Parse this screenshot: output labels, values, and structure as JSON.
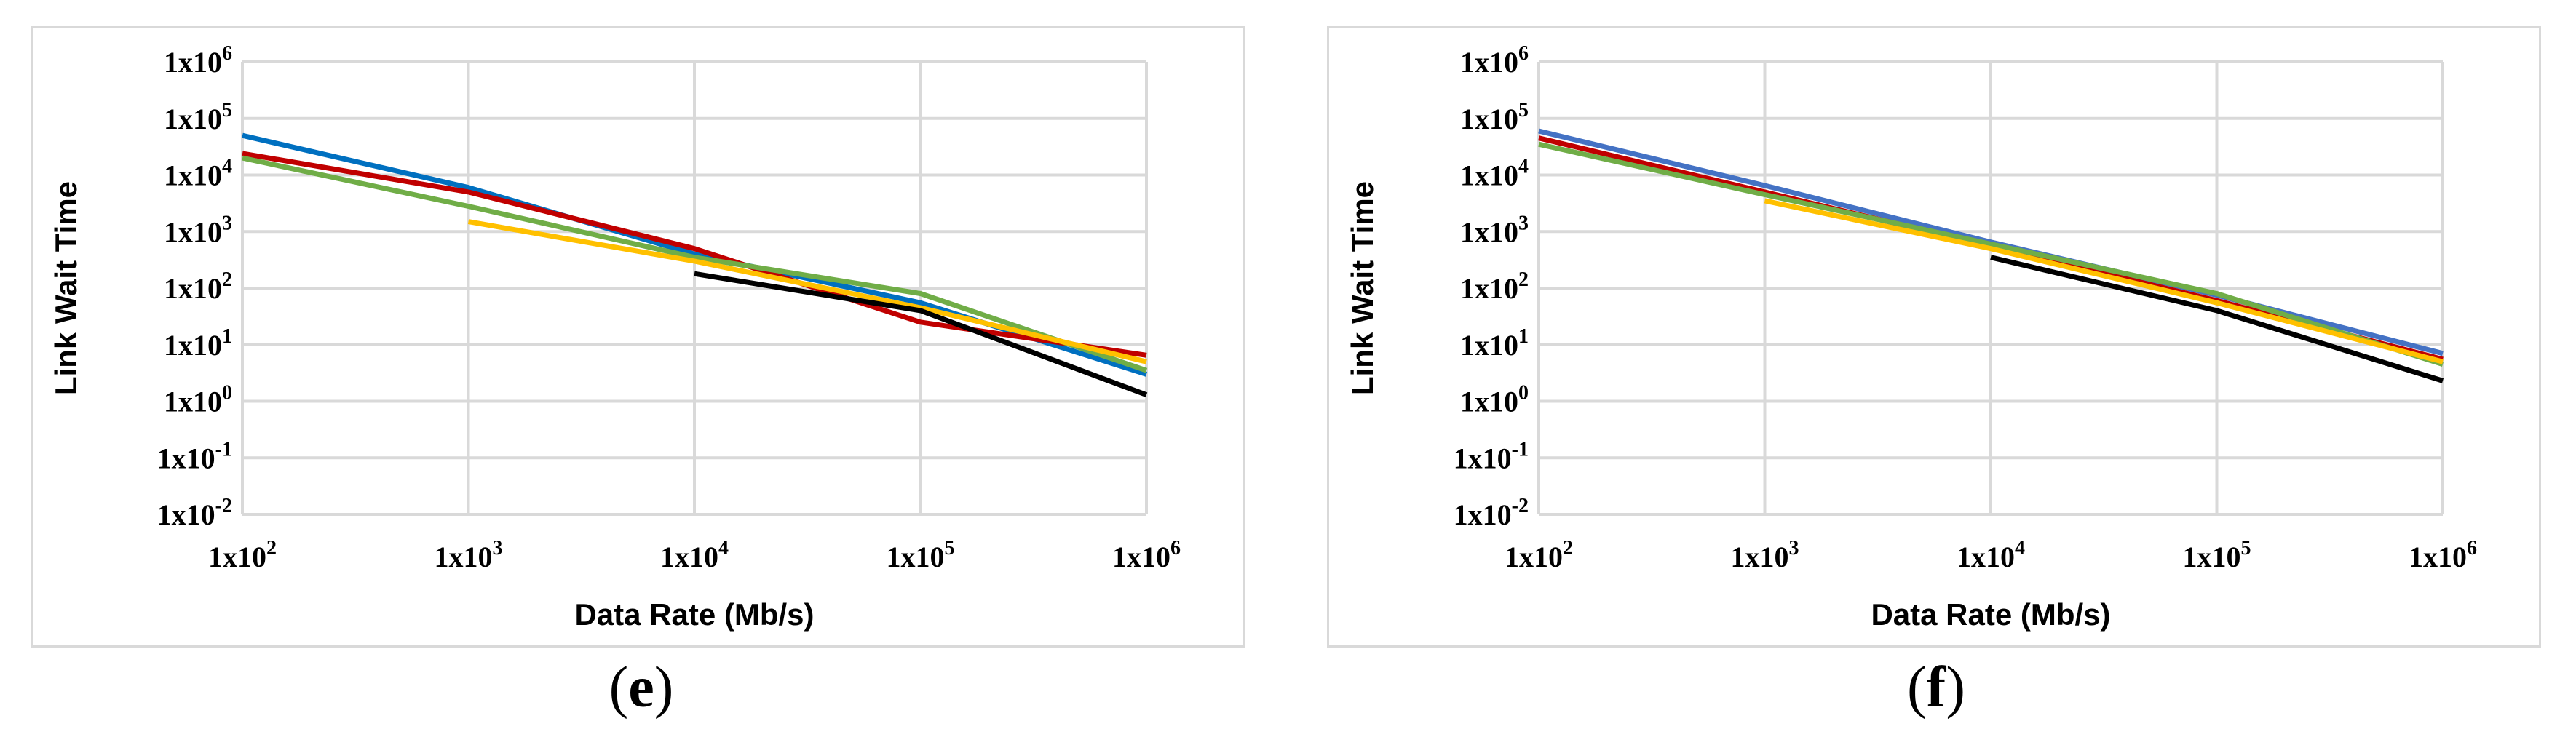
{
  "chart_data": [
    {
      "type": "line",
      "panel_label": "(e)",
      "label_letter": "e",
      "xlabel": "Data Rate (Mb/s)",
      "ylabel": "Link Wait Time",
      "x_scale": "log",
      "y_scale": "log",
      "xlim": [
        100,
        1000000
      ],
      "ylim": [
        0.01,
        1000000
      ],
      "x_ticks": [
        {
          "value": 100,
          "base": "1x10",
          "exp": "2"
        },
        {
          "value": 1000,
          "base": "1x10",
          "exp": "3"
        },
        {
          "value": 10000,
          "base": "1x10",
          "exp": "4"
        },
        {
          "value": 100000,
          "base": "1x10",
          "exp": "5"
        },
        {
          "value": 1000000,
          "base": "1x10",
          "exp": "6"
        }
      ],
      "y_ticks": [
        {
          "value": 0.01,
          "base": "1x10",
          "exp": "-2"
        },
        {
          "value": 0.1,
          "base": "1x10",
          "exp": "-1"
        },
        {
          "value": 1,
          "base": "1x10",
          "exp": "0"
        },
        {
          "value": 10,
          "base": "1x10",
          "exp": "1"
        },
        {
          "value": 100,
          "base": "1x10",
          "exp": "2"
        },
        {
          "value": 1000,
          "base": "1x10",
          "exp": "3"
        },
        {
          "value": 10000,
          "base": "1x10",
          "exp": "4"
        },
        {
          "value": 100000,
          "base": "1x10",
          "exp": "5"
        },
        {
          "value": 1000000,
          "base": "1x10",
          "exp": "6"
        }
      ],
      "grid": true,
      "series": [
        {
          "color": "#0070c0",
          "points": [
            [
              100,
              50000
            ],
            [
              1000,
              6000
            ],
            [
              10000,
              400
            ],
            [
              100000,
              55
            ],
            [
              1000000,
              3
            ]
          ]
        },
        {
          "color": "#c00000",
          "points": [
            [
              100,
              24000
            ],
            [
              1000,
              5000
            ],
            [
              10000,
              500
            ],
            [
              100000,
              25
            ],
            [
              1000000,
              6.5
            ]
          ]
        },
        {
          "color": "#70ad47",
          "points": [
            [
              100,
              20000
            ],
            [
              1000,
              2800
            ],
            [
              10000,
              350
            ],
            [
              100000,
              80
            ],
            [
              1000000,
              3.5
            ]
          ]
        },
        {
          "color": "#ffc000",
          "points": [
            [
              1000,
              1500
            ],
            [
              10000,
              300
            ],
            [
              100000,
              45
            ],
            [
              1000000,
              5
            ]
          ]
        },
        {
          "color": "#000000",
          "points": [
            [
              10000,
              180
            ],
            [
              100000,
              40
            ],
            [
              1000000,
              1.3
            ]
          ]
        }
      ]
    },
    {
      "type": "line",
      "panel_label": "(f)",
      "label_letter": "f",
      "xlabel": "Data Rate (Mb/s)",
      "ylabel": "Link Wait Time",
      "x_scale": "log",
      "y_scale": "log",
      "xlim": [
        100,
        1000000
      ],
      "ylim": [
        0.01,
        1000000
      ],
      "x_ticks": [
        {
          "value": 100,
          "base": "1x10",
          "exp": "2"
        },
        {
          "value": 1000,
          "base": "1x10",
          "exp": "3"
        },
        {
          "value": 10000,
          "base": "1x10",
          "exp": "4"
        },
        {
          "value": 100000,
          "base": "1x10",
          "exp": "5"
        },
        {
          "value": 1000000,
          "base": "1x10",
          "exp": "6"
        }
      ],
      "y_ticks": [
        {
          "value": 0.01,
          "base": "1x10",
          "exp": "-2"
        },
        {
          "value": 0.1,
          "base": "1x10",
          "exp": "-1"
        },
        {
          "value": 1,
          "base": "1x10",
          "exp": "0"
        },
        {
          "value": 10,
          "base": "1x10",
          "exp": "1"
        },
        {
          "value": 100,
          "base": "1x10",
          "exp": "2"
        },
        {
          "value": 1000,
          "base": "1x10",
          "exp": "3"
        },
        {
          "value": 10000,
          "base": "1x10",
          "exp": "4"
        },
        {
          "value": 100000,
          "base": "1x10",
          "exp": "5"
        },
        {
          "value": 1000000,
          "base": "1x10",
          "exp": "6"
        }
      ],
      "grid": true,
      "series": [
        {
          "color": "#4472c4",
          "points": [
            [
              100,
              60000
            ],
            [
              1000,
              6500
            ],
            [
              10000,
              650
            ],
            [
              100000,
              75
            ],
            [
              1000000,
              7
            ]
          ]
        },
        {
          "color": "#c00000",
          "points": [
            [
              100,
              45000
            ],
            [
              1000,
              5000
            ],
            [
              10000,
              550
            ],
            [
              100000,
              60
            ],
            [
              1000000,
              5.5
            ]
          ]
        },
        {
          "color": "#70ad47",
          "points": [
            [
              100,
              35000
            ],
            [
              1000,
              4500
            ],
            [
              10000,
              600
            ],
            [
              100000,
              80
            ],
            [
              1000000,
              4.5
            ]
          ]
        },
        {
          "color": "#ffc000",
          "points": [
            [
              1000,
              3500
            ],
            [
              10000,
              500
            ],
            [
              100000,
              55
            ],
            [
              1000000,
              5
            ]
          ]
        },
        {
          "color": "#000000",
          "points": [
            [
              10000,
              350
            ],
            [
              100000,
              40
            ],
            [
              1000000,
              2.3
            ]
          ]
        }
      ]
    }
  ]
}
